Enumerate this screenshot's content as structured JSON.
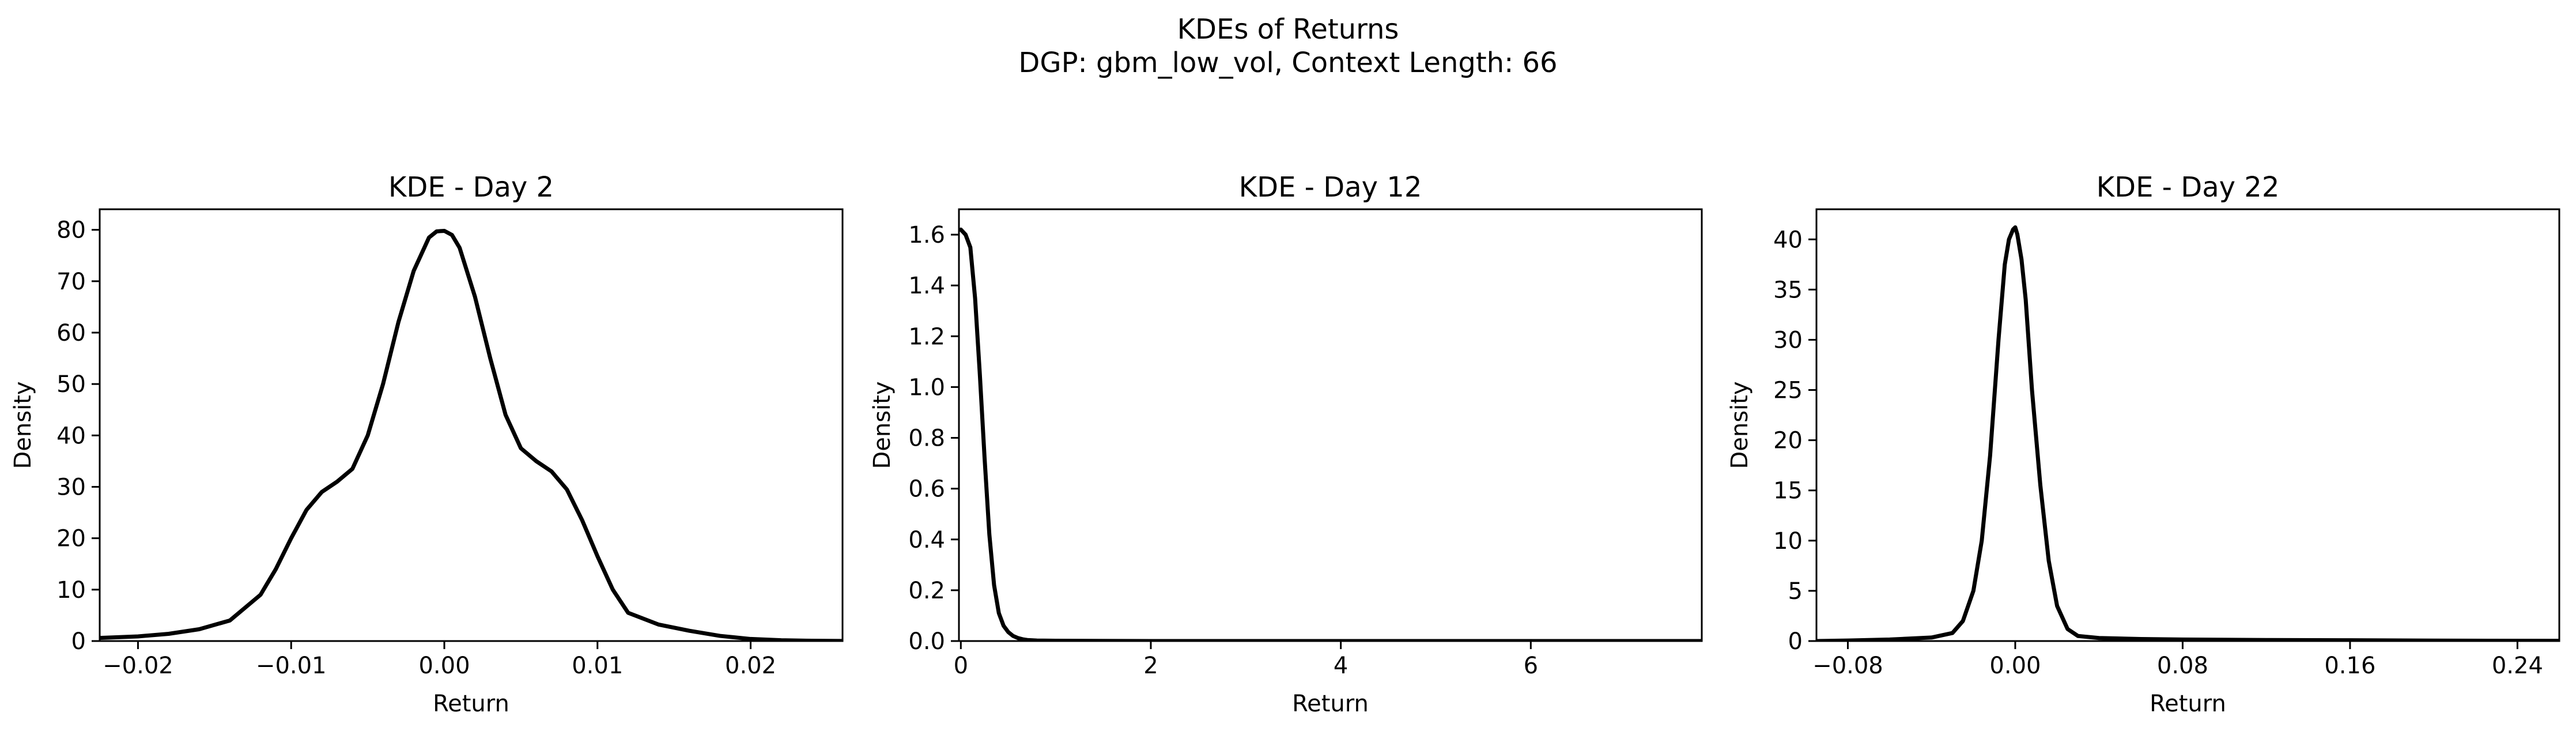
{
  "figure": {
    "title_line1": "KDEs of Returns",
    "title_line2": "DGP: gbm_low_vol, Context Length: 66"
  },
  "chart_data": [
    {
      "type": "line",
      "title": "KDE - Day 2",
      "xlabel": "Return",
      "ylabel": "Density",
      "xlim": [
        -0.0225,
        0.026
      ],
      "ylim": [
        0,
        84
      ],
      "xticks": [
        -0.02,
        -0.01,
        0.0,
        0.01,
        0.02
      ],
      "xtick_labels": [
        "−0.02",
        "−0.01",
        "0.00",
        "0.01",
        "0.02"
      ],
      "yticks": [
        0,
        10,
        20,
        30,
        40,
        50,
        60,
        70,
        80
      ],
      "ytick_labels": [
        "0",
        "10",
        "20",
        "30",
        "40",
        "50",
        "60",
        "70",
        "80"
      ],
      "grid": false,
      "color": "#000000",
      "x": [
        -0.0225,
        -0.02,
        -0.018,
        -0.016,
        -0.014,
        -0.012,
        -0.011,
        -0.01,
        -0.009,
        -0.008,
        -0.007,
        -0.006,
        -0.005,
        -0.004,
        -0.003,
        -0.002,
        -0.001,
        -0.0005,
        0.0,
        0.0005,
        0.001,
        0.002,
        0.003,
        0.004,
        0.005,
        0.006,
        0.007,
        0.008,
        0.009,
        0.01,
        0.011,
        0.012,
        0.014,
        0.016,
        0.018,
        0.02,
        0.022,
        0.024,
        0.026
      ],
      "y": [
        0.6,
        0.9,
        1.4,
        2.3,
        4.0,
        9.0,
        14.0,
        20.0,
        25.5,
        29.0,
        31.0,
        33.5,
        40.0,
        50.0,
        62.0,
        72.0,
        78.5,
        79.7,
        79.8,
        79.0,
        76.5,
        67.0,
        55.0,
        44.0,
        37.5,
        35.0,
        33.0,
        29.5,
        23.5,
        16.5,
        10.0,
        5.5,
        3.2,
        2.0,
        1.0,
        0.4,
        0.15,
        0.05,
        0.02
      ]
    },
    {
      "type": "line",
      "title": "KDE - Day 12",
      "xlabel": "Return",
      "ylabel": "Density",
      "xlim": [
        -0.02,
        7.8
      ],
      "ylim": [
        0,
        1.7
      ],
      "xticks": [
        0,
        2,
        4,
        6
      ],
      "xtick_labels": [
        "0",
        "2",
        "4",
        "6"
      ],
      "yticks": [
        0.0,
        0.2,
        0.4,
        0.6,
        0.8,
        1.0,
        1.2,
        1.4,
        1.6
      ],
      "ytick_labels": [
        "0.0",
        "0.2",
        "0.4",
        "0.6",
        "0.8",
        "1.0",
        "1.2",
        "1.4",
        "1.6"
      ],
      "grid": false,
      "color": "#000000",
      "x": [
        0.0,
        0.05,
        0.1,
        0.15,
        0.2,
        0.25,
        0.3,
        0.35,
        0.4,
        0.45,
        0.5,
        0.55,
        0.6,
        0.65,
        0.7,
        0.8,
        1.0,
        2.0,
        4.0,
        6.0,
        7.8
      ],
      "y": [
        1.62,
        1.6,
        1.55,
        1.35,
        1.05,
        0.72,
        0.42,
        0.22,
        0.11,
        0.06,
        0.035,
        0.02,
        0.012,
        0.007,
        0.004,
        0.002,
        0.001,
        0.0,
        0.0,
        0.0,
        0.0
      ]
    },
    {
      "type": "line",
      "title": "KDE - Day 22",
      "xlabel": "Return",
      "ylabel": "Density",
      "xlim": [
        -0.095,
        0.26
      ],
      "ylim": [
        0,
        43
      ],
      "xticks": [
        -0.08,
        0.0,
        0.08,
        0.16,
        0.24
      ],
      "xtick_labels": [
        "−0.08",
        "0.00",
        "0.08",
        "0.16",
        "0.24"
      ],
      "yticks": [
        0,
        5,
        10,
        15,
        20,
        25,
        30,
        35,
        40
      ],
      "ytick_labels": [
        "0",
        "5",
        "10",
        "15",
        "20",
        "25",
        "30",
        "35",
        "40"
      ],
      "grid": false,
      "color": "#000000",
      "x": [
        -0.095,
        -0.08,
        -0.06,
        -0.04,
        -0.03,
        -0.025,
        -0.02,
        -0.016,
        -0.012,
        -0.008,
        -0.005,
        -0.003,
        -0.001,
        0.0,
        0.001,
        0.003,
        0.005,
        0.008,
        0.012,
        0.016,
        0.02,
        0.025,
        0.03,
        0.04,
        0.06,
        0.08,
        0.12,
        0.16,
        0.2,
        0.26
      ],
      "y": [
        0.0,
        0.05,
        0.15,
        0.35,
        0.8,
        2.0,
        5.0,
        10.0,
        18.5,
        30.0,
        37.5,
        40.0,
        41.0,
        41.2,
        40.5,
        38.0,
        34.0,
        25.0,
        15.5,
        8.0,
        3.5,
        1.2,
        0.5,
        0.3,
        0.2,
        0.15,
        0.1,
        0.08,
        0.04,
        0.02
      ]
    }
  ]
}
